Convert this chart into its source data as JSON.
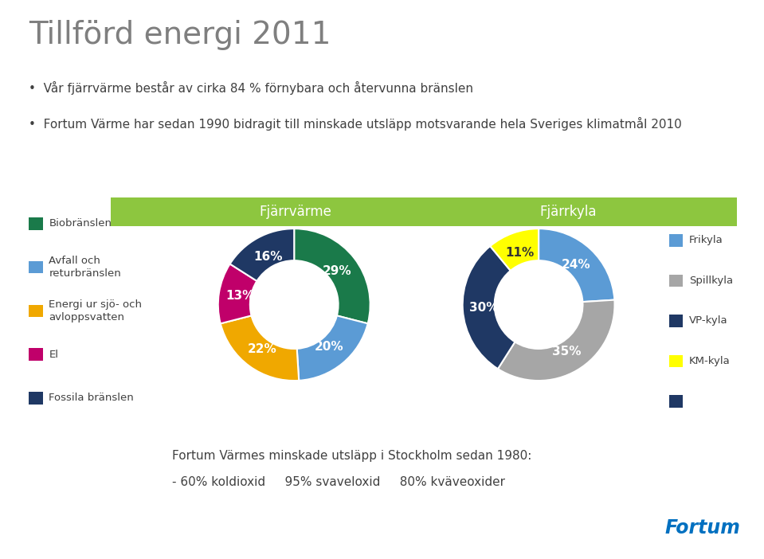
{
  "title": "Tillförd energi 2011",
  "bullet1": "Vår fjärrvärme består av cirka 84 % förnybara och återvunna bränslen",
  "bullet2": "Fortum Värme har sedan 1990 bidragit till minskade utsläpp motsvarande hela Sveriges klimatmål 2010",
  "header_left": "Fjärrvärme",
  "header_right": "Fjärrkyla",
  "header_bg": "#8dc63f",
  "fjarvarme_values": [
    29,
    20,
    22,
    13,
    16
  ],
  "fjarvarme_labels": [
    "29%",
    "20%",
    "22%",
    "13%",
    "16%"
  ],
  "fjarvarme_colors": [
    "#1a7a4a",
    "#5b9bd5",
    "#f0a800",
    "#c0006a",
    "#1f3864"
  ],
  "fjarvarme_legend_labels": [
    "Biobränslen",
    "Avfall och\nreturbränslen",
    "Energi ur sjö- och\navloppsvatten",
    "El",
    "Fossila bränslen"
  ],
  "fjarvarme_legend_colors": [
    "#1a7a4a",
    "#5b9bd5",
    "#f0a800",
    "#c0006a",
    "#1f3864"
  ],
  "fjarkyla_values": [
    24,
    35,
    30,
    11
  ],
  "fjarkyla_labels": [
    "24%",
    "35%",
    "30%",
    "11%"
  ],
  "fjarkyla_colors": [
    "#5b9bd5",
    "#a6a6a6",
    "#1f3864",
    "#ffff00"
  ],
  "fjarkyla_legend_labels": [
    "Frikyla",
    "Spillkyla",
    "VP-kyla",
    "KM-kyla"
  ],
  "fjarkyla_legend_colors": [
    "#5b9bd5",
    "#a6a6a6",
    "#1f3864",
    "#ffff00"
  ],
  "extra_square_color": "#1f3864",
  "footer_line1": "Fortum Värmes minskade utsläpp i Stockholm sedan 1980:",
  "footer_line2": "- 60% koldioxid     95% svaveloxid     80% kväveoxider",
  "background_color": "#ffffff",
  "title_color": "#7f7f7f",
  "text_color": "#404040",
  "title_fontsize": 28,
  "body_fontsize": 11,
  "header_fontsize": 12,
  "legend_fontsize": 9.5,
  "pct_fontsize": 11
}
